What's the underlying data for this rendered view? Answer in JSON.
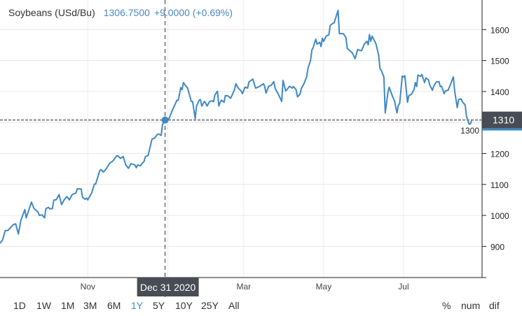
{
  "header": {
    "name": "Soybeans (USd/Bu)",
    "quote": "1306.7500",
    "change": "+9.0000 (+0.69%)"
  },
  "crosshair": {
    "date_label": "Dec 31 2020",
    "price_label": "1310"
  },
  "range_buttons": [
    "1D",
    "1W",
    "1M",
    "3M",
    "6M",
    "1Y",
    "5Y",
    "10Y",
    "25Y",
    "All"
  ],
  "active_range": "1Y",
  "mode_buttons": [
    "%",
    "num",
    "dif"
  ],
  "colors": {
    "line": "#3f88c5",
    "label_bg": "#474c55",
    "accent": "#4a86c5"
  },
  "chart_data": {
    "type": "line",
    "title": "Soybeans (USd/Bu)",
    "xlabel": "",
    "ylabel": "",
    "x_unit": "calendar days from chart start (late Aug 2020)",
    "x_ticks": [
      {
        "label": "Nov",
        "day": 67
      },
      {
        "label": "Mar",
        "day": 186
      },
      {
        "label": "May",
        "day": 247
      },
      {
        "label": "Jul",
        "day": 308
      }
    ],
    "grid_days": [
      67,
      128,
      186,
      247,
      308
    ],
    "y_ticks": [
      900,
      1000,
      1100,
      1200,
      1300,
      1400,
      1500,
      1600
    ],
    "ylim": [
      820,
      1710
    ],
    "xlim": [
      0,
      368
    ],
    "grid": true,
    "crosshair_day": 126,
    "crosshair_value": 1308,
    "x": [
      0,
      2,
      4,
      6,
      10,
      12,
      14,
      16,
      19,
      20,
      24,
      26,
      29,
      30,
      32,
      34,
      35,
      37,
      38,
      40,
      41,
      43,
      45,
      47,
      49,
      51,
      53,
      55,
      58,
      59,
      62,
      63,
      65,
      66,
      67,
      70,
      72,
      73,
      76,
      77,
      79,
      81,
      84,
      86,
      89,
      90,
      92,
      94,
      96,
      98,
      100,
      103,
      104,
      105,
      107,
      110,
      111,
      113,
      116,
      118,
      120,
      121,
      123,
      124,
      126,
      129,
      131,
      133,
      135,
      136,
      138,
      139,
      140,
      142,
      143,
      145,
      146,
      147,
      149,
      150,
      152,
      153,
      154,
      156,
      157,
      158,
      160,
      162,
      163,
      164,
      166,
      167,
      168,
      169,
      171,
      172,
      174,
      176,
      177,
      179,
      180,
      182,
      184,
      185,
      187,
      189,
      190,
      193,
      195,
      197,
      199,
      201,
      202,
      203,
      205,
      207,
      209,
      210,
      212,
      215,
      216,
      218,
      219,
      221,
      223,
      224,
      226,
      227,
      229,
      230,
      232,
      234,
      235,
      237,
      238,
      239,
      241,
      242,
      244,
      245,
      246,
      247,
      249,
      251,
      252,
      254,
      255,
      258,
      259,
      262,
      264,
      265,
      267,
      269,
      271,
      273,
      275,
      276,
      278,
      280,
      281,
      282,
      283,
      284,
      287,
      289,
      290,
      291,
      293,
      294,
      296,
      297,
      299,
      300,
      301,
      303,
      304,
      305,
      307,
      308,
      309,
      311,
      312,
      314,
      316,
      317,
      318,
      319,
      321,
      322,
      324,
      325,
      327,
      328,
      330,
      331,
      333,
      335,
      336,
      337,
      339,
      340,
      342,
      344,
      346,
      347,
      349,
      350,
      352,
      353,
      355,
      356,
      358,
      359,
      360
    ],
    "values": [
      910,
      921,
      951,
      951,
      970,
      973,
      940,
      985,
      1019,
      992,
      1043,
      1022,
      1011,
      1000,
      1002,
      992,
      1022,
      1026,
      1021,
      1022,
      1049,
      1051,
      1067,
      1035,
      1050,
      1061,
      1050,
      1067,
      1073,
      1086,
      1085,
      1058,
      1052,
      1056,
      1050,
      1073,
      1101,
      1101,
      1143,
      1148,
      1140,
      1150,
      1170,
      1175,
      1192,
      1192,
      1184,
      1190,
      1163,
      1152,
      1167,
      1163,
      1154,
      1163,
      1160,
      1175,
      1190,
      1193,
      1246,
      1250,
      1261,
      1263,
      1258,
      1293,
      1308,
      1312,
      1334,
      1353,
      1372,
      1371,
      1413,
      1406,
      1429,
      1417,
      1413,
      1383,
      1368,
      1368,
      1312,
      1353,
      1372,
      1374,
      1353,
      1368,
      1363,
      1353,
      1368,
      1370,
      1367,
      1389,
      1401,
      1353,
      1365,
      1372,
      1365,
      1387,
      1386,
      1378,
      1387,
      1406,
      1425,
      1410,
      1402,
      1393,
      1414,
      1411,
      1431,
      1440,
      1411,
      1414,
      1419,
      1425,
      1417,
      1395,
      1417,
      1420,
      1432,
      1410,
      1395,
      1368,
      1436,
      1402,
      1406,
      1417,
      1411,
      1416,
      1406,
      1383,
      1391,
      1410,
      1425,
      1447,
      1474,
      1500,
      1534,
      1541,
      1569,
      1553,
      1559,
      1545,
      1572,
      1562,
      1579,
      1583,
      1613,
      1620,
      1622,
      1662,
      1587,
      1587,
      1575,
      1539,
      1532,
      1524,
      1506,
      1536,
      1532,
      1532,
      1553,
      1562,
      1551,
      1584,
      1562,
      1579,
      1553,
      1517,
      1474,
      1468,
      1447,
      1331,
      1395,
      1414,
      1391,
      1380,
      1371,
      1331,
      1356,
      1361,
      1450,
      1447,
      1451,
      1365,
      1386,
      1391,
      1406,
      1429,
      1416,
      1453,
      1449,
      1455,
      1429,
      1444,
      1438,
      1421,
      1404,
      1417,
      1431,
      1432,
      1416,
      1417,
      1393,
      1402,
      1404,
      1425,
      1447,
      1402,
      1348,
      1374,
      1376,
      1366,
      1357,
      1320,
      1295,
      1295,
      1308
    ]
  }
}
